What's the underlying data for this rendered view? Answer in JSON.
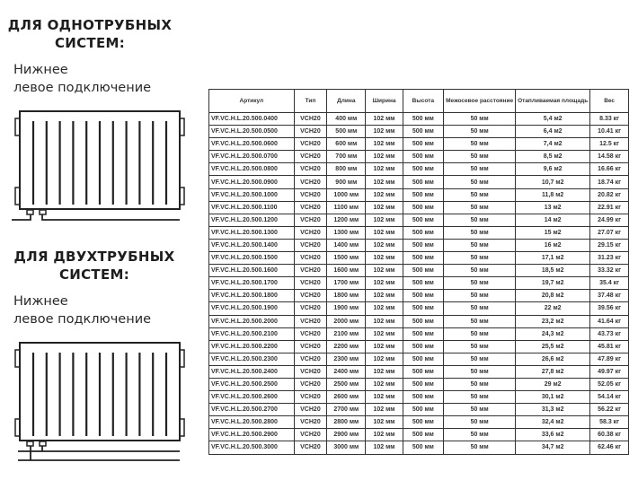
{
  "left": {
    "single": {
      "title1": "ДЛЯ ОДНОТРУБНЫХ",
      "title2": "СИСТЕМ:",
      "sub1": "Нижнее",
      "sub2": "левое подключение"
    },
    "double": {
      "title1": "ДЛЯ ДВУХТРУБНЫХ",
      "title2": "СИСТЕМ:",
      "sub1": "Нижнее",
      "sub2": "левое подключение"
    }
  },
  "table": {
    "headers": [
      "Артикул",
      "Тип",
      "Длина",
      "Ширина",
      "Высота",
      "Межосевое расстояние",
      "Отапливаемая площадь",
      "Вес"
    ],
    "rows": [
      [
        "VF.VC.H.L.20.500.0400",
        "VCH20",
        "400 мм",
        "102 мм",
        "500 мм",
        "50 мм",
        "5,4 м2",
        "8.33 кг"
      ],
      [
        "VF.VC.H.L.20.500.0500",
        "VCH20",
        "500 мм",
        "102 мм",
        "500 мм",
        "50 мм",
        "6,4 м2",
        "10.41 кг"
      ],
      [
        "VF.VC.H.L.20.500.0600",
        "VCH20",
        "600 мм",
        "102 мм",
        "500 мм",
        "50 мм",
        "7,4 м2",
        "12.5 кг"
      ],
      [
        "VF.VC.H.L.20.500.0700",
        "VCH20",
        "700 мм",
        "102 мм",
        "500 мм",
        "50 мм",
        "8,5 м2",
        "14.58 кг"
      ],
      [
        "VF.VC.H.L.20.500.0800",
        "VCH20",
        "800 мм",
        "102 мм",
        "500 мм",
        "50 мм",
        "9,6 м2",
        "16.66 кг"
      ],
      [
        "VF.VC.H.L.20.500.0900",
        "VCH20",
        "900 мм",
        "102 мм",
        "500 мм",
        "50 мм",
        "10,7 м2",
        "18.74 кг"
      ],
      [
        "VF.VC.H.L.20.500.1000",
        "VCH20",
        "1000 мм",
        "102 мм",
        "500 мм",
        "50 мм",
        "11,8 м2",
        "20.82 кг"
      ],
      [
        "VF.VC.H.L.20.500.1100",
        "VCH20",
        "1100 мм",
        "102 мм",
        "500 мм",
        "50 мм",
        "13 м2",
        "22.91 кг"
      ],
      [
        "VF.VC.H.L.20.500.1200",
        "VCH20",
        "1200 мм",
        "102 мм",
        "500 мм",
        "50 мм",
        "14 м2",
        "24.99 кг"
      ],
      [
        "VF.VC.H.L.20.500.1300",
        "VCH20",
        "1300 мм",
        "102 мм",
        "500 мм",
        "50 мм",
        "15 м2",
        "27.07 кг"
      ],
      [
        "VF.VC.H.L.20.500.1400",
        "VCH20",
        "1400 мм",
        "102 мм",
        "500 мм",
        "50 мм",
        "16 м2",
        "29.15 кг"
      ],
      [
        "VF.VC.H.L.20.500.1500",
        "VCH20",
        "1500 мм",
        "102 мм",
        "500 мм",
        "50 мм",
        "17,1 м2",
        "31.23 кг"
      ],
      [
        "VF.VC.H.L.20.500.1600",
        "VCH20",
        "1600 мм",
        "102 мм",
        "500 мм",
        "50 мм",
        "18,5 м2",
        "33.32 кг"
      ],
      [
        "VF.VC.H.L.20.500.1700",
        "VCH20",
        "1700 мм",
        "102 мм",
        "500 мм",
        "50 мм",
        "19,7 м2",
        "35.4 кг"
      ],
      [
        "VF.VC.H.L.20.500.1800",
        "VCH20",
        "1800 мм",
        "102 мм",
        "500 мм",
        "50 мм",
        "20,8 м2",
        "37.48 кг"
      ],
      [
        "VF.VC.H.L.20.500.1900",
        "VCH20",
        "1900 мм",
        "102 мм",
        "500 мм",
        "50 мм",
        "22 м2",
        "39.56 кг"
      ],
      [
        "VF.VC.H.L.20.500.2000",
        "VCH20",
        "2000 мм",
        "102 мм",
        "500 мм",
        "50 мм",
        "23,2 м2",
        "41.64 кг"
      ],
      [
        "VF.VC.H.L.20.500.2100",
        "VCH20",
        "2100 мм",
        "102 мм",
        "500 мм",
        "50 мм",
        "24,3 м2",
        "43.73 кг"
      ],
      [
        "VF.VC.H.L.20.500.2200",
        "VCH20",
        "2200 мм",
        "102 мм",
        "500 мм",
        "50 мм",
        "25,5 м2",
        "45.81 кг"
      ],
      [
        "VF.VC.H.L.20.500.2300",
        "VCH20",
        "2300 мм",
        "102 мм",
        "500 мм",
        "50 мм",
        "26,6 м2",
        "47.89 кг"
      ],
      [
        "VF.VC.H.L.20.500.2400",
        "VCH20",
        "2400 мм",
        "102 мм",
        "500 мм",
        "50 мм",
        "27,8 м2",
        "49.97 кг"
      ],
      [
        "VF.VC.H.L.20.500.2500",
        "VCH20",
        "2500 мм",
        "102 мм",
        "500 мм",
        "50 мм",
        "29 м2",
        "52.05 кг"
      ],
      [
        "VF.VC.H.L.20.500.2600",
        "VCH20",
        "2600 мм",
        "102 мм",
        "500 мм",
        "50 мм",
        "30,1 м2",
        "54.14 кг"
      ],
      [
        "VF.VC.H.L.20.500.2700",
        "VCH20",
        "2700 мм",
        "102 мм",
        "500 мм",
        "50 мм",
        "31,3 м2",
        "56.22 кг"
      ],
      [
        "VF.VC.H.L.20.500.2800",
        "VCH20",
        "2800 мм",
        "102 мм",
        "500 мм",
        "50 мм",
        "32,4 м2",
        "58.3 кг"
      ],
      [
        "VF.VC.H.L.20.500.2900",
        "VCH20",
        "2900 мм",
        "102 мм",
        "500 мм",
        "50 мм",
        "33,6 м2",
        "60.38 кг"
      ],
      [
        "VF.VC.H.L.20.500.3000",
        "VCH20",
        "3000 мм",
        "102 мм",
        "500 мм",
        "50 мм",
        "34,7 м2",
        "62.46 кг"
      ]
    ]
  }
}
